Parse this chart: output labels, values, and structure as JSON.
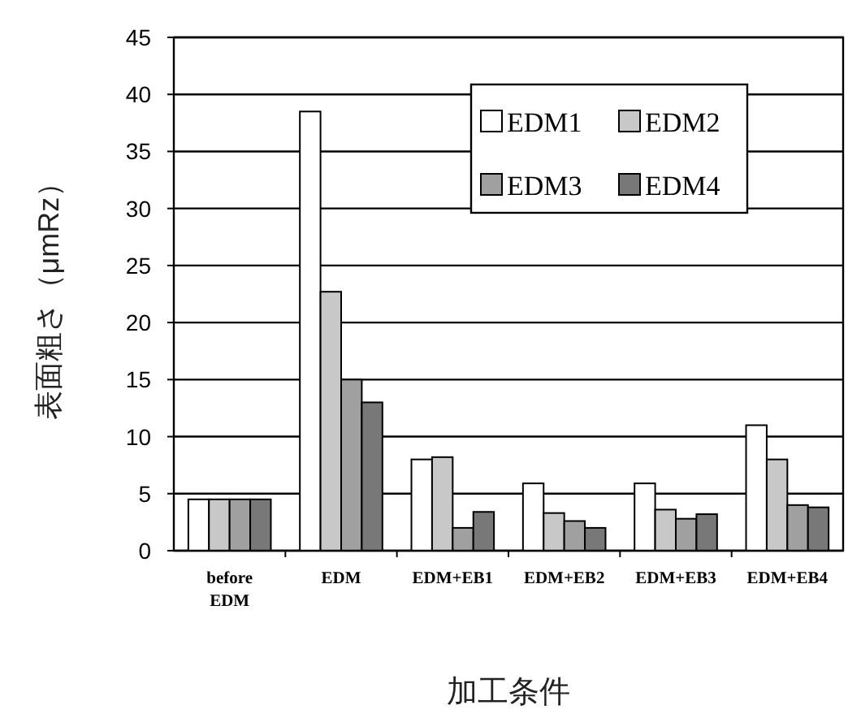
{
  "chart_data": {
    "type": "bar",
    "xlabel": "加工条件",
    "ylabel": "表面粗さ（μmRz）",
    "categories": [
      "before EDM",
      "EDM",
      "EDM+EB1",
      "EDM+EB2",
      "EDM+EB3",
      "EDM+EB4"
    ],
    "series": [
      {
        "name": "EDM1",
        "color": "#ffffff",
        "values": [
          4.5,
          38.5,
          8,
          5.9,
          5.9,
          11
        ]
      },
      {
        "name": "EDM2",
        "color": "#c8c8c8",
        "values": [
          4.5,
          22.7,
          8.2,
          3.3,
          3.6,
          8
        ]
      },
      {
        "name": "EDM3",
        "color": "#a0a0a0",
        "values": [
          4.5,
          15,
          2,
          2.6,
          2.8,
          4
        ]
      },
      {
        "name": "EDM4",
        "color": "#787878",
        "values": [
          4.5,
          13,
          3.4,
          2,
          3.2,
          3.8
        ]
      }
    ],
    "ylim": [
      0,
      45
    ],
    "yticks": [
      0,
      5,
      10,
      15,
      20,
      25,
      30,
      35,
      40,
      45
    ],
    "grid": "y",
    "legend": "top right"
  }
}
